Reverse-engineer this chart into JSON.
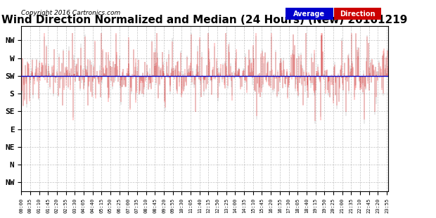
{
  "title": "Wind Direction Normalized and Median (24 Hours) (New) 20161219",
  "copyright": "Copyright 2016 Cartronics.com",
  "legend_avg_label": "Average",
  "legend_dir_label": "Direction",
  "legend_avg_color": "#0000cc",
  "legend_dir_color": "#cc0000",
  "ytick_labels": [
    "NW",
    "W",
    "SW",
    "S",
    "SE",
    "E",
    "NE",
    "N",
    "NW"
  ],
  "ytick_values": [
    4,
    3,
    2,
    1,
    0,
    -1,
    -2,
    -3,
    -4
  ],
  "ylim": [
    -4.5,
    4.8
  ],
  "background_color": "#ffffff",
  "grid_color": "#aaaaaa",
  "title_fontsize": 11,
  "avg_line_value": 2.0,
  "avg_line_color": "#0000cc",
  "data_color": "#ff0000",
  "dark_color": "#555555",
  "num_points": 576
}
